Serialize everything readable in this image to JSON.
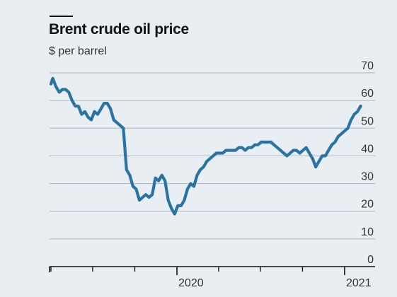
{
  "header": {
    "title": "Brent crude oil price",
    "subtitle": "$ per barrel"
  },
  "chart_data": {
    "type": "line",
    "title": "Brent crude oil price",
    "ylabel": "$ per barrel",
    "ylim": [
      0,
      70
    ],
    "yticks": [
      0,
      10,
      20,
      30,
      40,
      50,
      60,
      70
    ],
    "x_tick_labels": [
      "2020",
      "2021"
    ],
    "grid": "horizontal",
    "line_color": "#2a73a5",
    "series": [
      {
        "x": [
          "2019-04-01",
          "2019-04-05",
          "2019-04-12",
          "2019-04-19",
          "2019-04-26",
          "2019-05-03",
          "2019-05-10",
          "2019-05-17",
          "2019-05-24",
          "2019-05-31",
          "2019-06-07",
          "2019-06-14",
          "2019-06-21",
          "2019-06-28",
          "2019-07-05",
          "2019-07-12",
          "2019-07-19",
          "2019-07-26",
          "2019-08-02",
          "2019-08-09",
          "2019-08-16",
          "2019-08-23",
          "2019-08-30",
          "2019-09-06",
          "2019-09-13",
          "2019-09-20",
          "2019-09-27",
          "2019-10-04",
          "2019-10-11",
          "2019-10-18",
          "2019-10-25",
          "2019-11-01",
          "2019-11-08",
          "2019-11-15",
          "2019-11-22",
          "2019-11-29",
          "2019-12-06",
          "2019-12-13",
          "2019-12-20",
          "2019-12-27",
          "2020-01-03",
          "2020-01-10",
          "2020-01-17",
          "2020-01-24",
          "2020-01-31",
          "2020-02-07",
          "2020-02-14",
          "2020-02-21",
          "2020-02-28",
          "2020-03-06",
          "2020-03-13",
          "2020-03-20",
          "2020-03-27",
          "2020-04-03",
          "2020-04-10",
          "2020-04-17",
          "2020-04-24",
          "2020-05-01",
          "2020-05-08",
          "2020-05-15",
          "2020-05-22",
          "2020-05-29",
          "2020-06-05",
          "2020-06-12",
          "2020-06-19",
          "2020-06-26",
          "2020-07-03",
          "2020-07-10",
          "2020-07-17",
          "2020-07-24",
          "2020-07-31",
          "2020-08-07",
          "2020-08-14",
          "2020-08-21",
          "2020-08-28",
          "2020-09-04",
          "2020-09-11",
          "2020-09-18",
          "2020-09-25",
          "2020-10-02",
          "2020-10-09",
          "2020-10-16",
          "2020-10-23",
          "2020-10-30",
          "2020-11-06",
          "2020-11-13",
          "2020-11-20",
          "2020-11-27",
          "2020-12-04",
          "2020-12-11",
          "2020-12-18",
          "2020-12-25",
          "2021-01-01",
          "2021-01-08",
          "2021-01-15",
          "2021-01-22",
          "2021-01-29",
          "2021-02-05"
        ],
        "values": [
          66,
          68,
          65,
          63,
          64,
          64,
          63,
          60,
          58,
          58,
          55,
          56,
          54,
          53,
          56,
          55,
          57,
          59,
          59,
          57,
          53,
          52,
          51,
          50,
          35,
          33,
          29,
          28,
          24,
          25,
          26,
          25,
          26,
          32,
          31,
          33,
          31,
          24,
          21,
          19,
          22,
          22,
          24,
          28,
          30,
          29,
          33,
          35,
          36,
          38,
          39,
          40,
          41,
          41,
          41,
          42,
          42,
          42,
          42,
          43,
          43,
          42,
          43,
          43,
          44,
          44,
          45,
          45,
          45,
          45,
          44,
          43,
          42,
          41,
          40,
          41,
          42,
          42,
          41,
          42,
          43,
          41,
          39,
          36,
          38,
          40,
          40,
          42,
          44,
          45,
          47,
          48,
          49,
          50,
          53,
          55,
          56,
          58
        ]
      }
    ]
  }
}
